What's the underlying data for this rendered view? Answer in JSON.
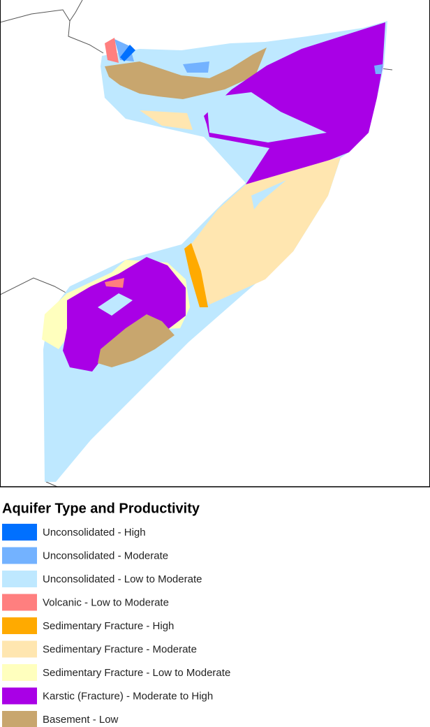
{
  "legend": {
    "title": "Aquifer Type and Productivity",
    "items": [
      {
        "label": "Unconsolidated - High",
        "color": "#0070ff"
      },
      {
        "label": "Unconsolidated - Moderate",
        "color": "#73b2ff"
      },
      {
        "label": "Unconsolidated - Low to Moderate",
        "color": "#bee8ff"
      },
      {
        "label": "Volcanic - Low to Moderate",
        "color": "#ff7f7f"
      },
      {
        "label": "Sedimentary Fracture - High",
        "color": "#ffaa00"
      },
      {
        "label": "Sedimentary Fracture - Moderate",
        "color": "#ffe6b0"
      },
      {
        "label": "Sedimentary Fracture - Low to Moderate",
        "color": "#ffffbe"
      },
      {
        "label": "Karstic (Fracture) - Moderate to High",
        "color": "#a900e6"
      },
      {
        "label": "Basement - Low",
        "color": "#c8a66e"
      }
    ]
  }
}
